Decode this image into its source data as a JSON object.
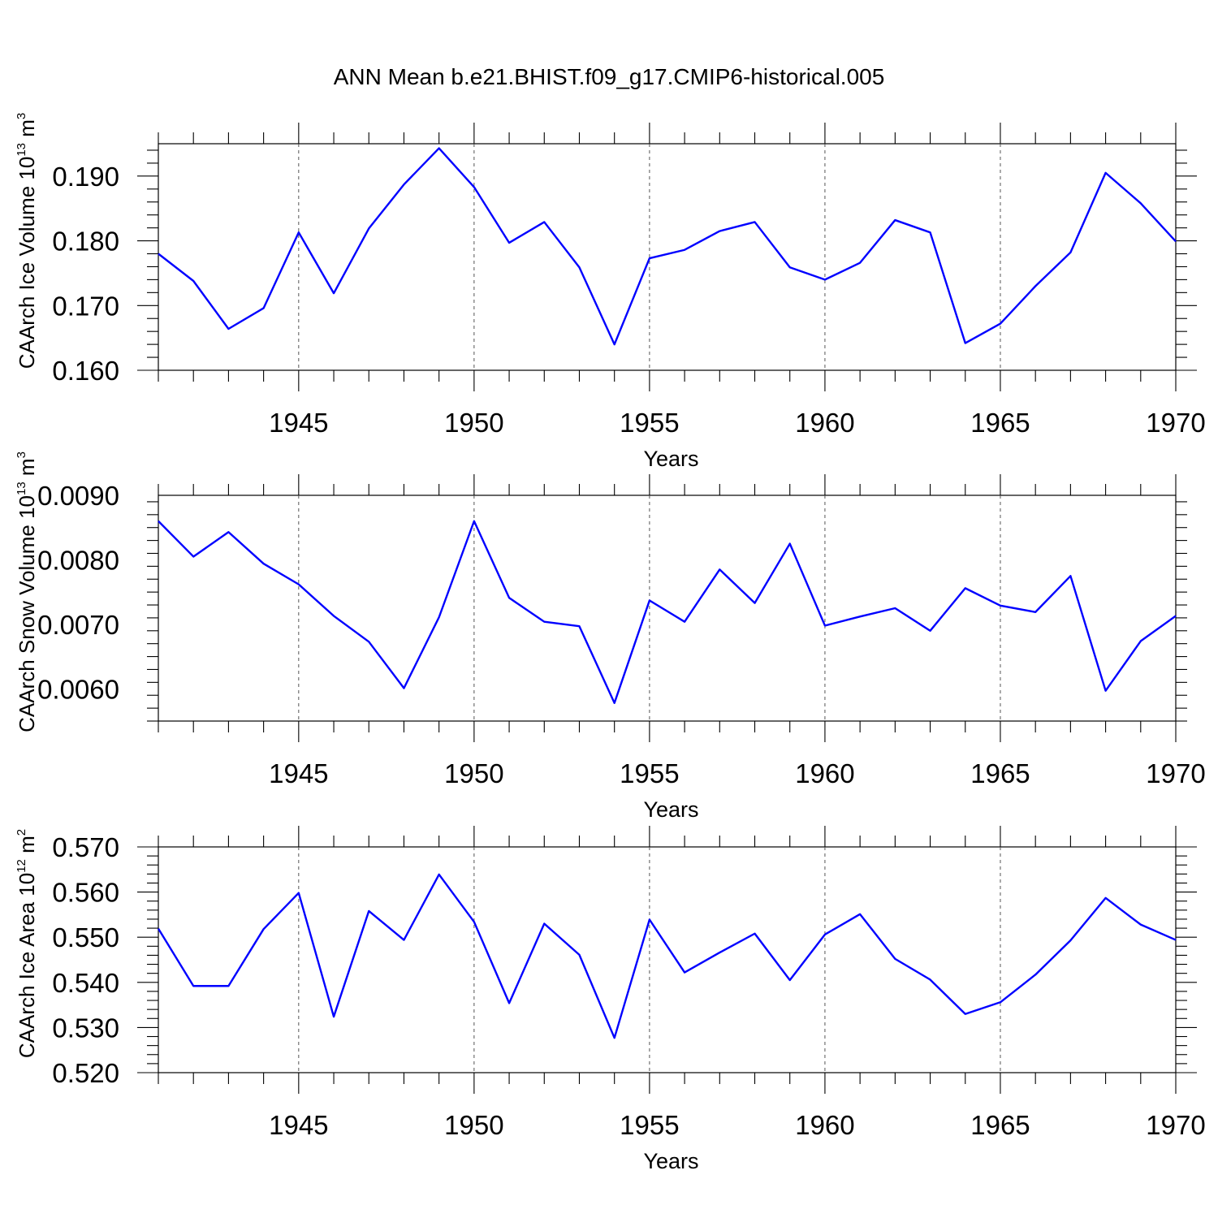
{
  "title": "ANN Mean b.e21.BHIST.f09_g17.CMIP6-historical.005",
  "colors": {
    "line": "#0000ff",
    "axis": "#000000"
  },
  "chart_data": [
    {
      "type": "line",
      "xlabel": "Years",
      "ylabel": {
        "main": "CAArch Ice Volume 10",
        "exp": "13",
        "unit": " m",
        "unit_exp": "3"
      },
      "xlim": [
        1941,
        1970
      ],
      "ylim": [
        0.16,
        0.195
      ],
      "xticks": [
        1945,
        1950,
        1955,
        1960,
        1965,
        1970
      ],
      "xtick_labels": [
        "1945",
        "1950",
        "1955",
        "1960",
        "1965",
        "1970"
      ],
      "yticks": [
        0.16,
        0.17,
        0.18,
        0.19
      ],
      "ytick_labels": [
        "0.160",
        "0.170",
        "0.180",
        "0.190"
      ],
      "x": [
        1941,
        1942,
        1943,
        1944,
        1945,
        1946,
        1947,
        1948,
        1949,
        1950,
        1951,
        1952,
        1953,
        1954,
        1955,
        1956,
        1957,
        1958,
        1959,
        1960,
        1961,
        1962,
        1963,
        1964,
        1965,
        1966,
        1967,
        1968,
        1969,
        1970
      ],
      "series": [
        {
          "name": "CAArch Ice Volume",
          "values": [
            0.178,
            0.1738,
            0.1664,
            0.1696,
            0.1813,
            0.1719,
            0.1819,
            0.1887,
            0.1943,
            0.1883,
            0.1797,
            0.1829,
            0.1759,
            0.164,
            0.1773,
            0.1786,
            0.1815,
            0.1829,
            0.1759,
            0.174,
            0.1766,
            0.1832,
            0.1813,
            0.1642,
            0.1672,
            0.173,
            0.1782,
            0.1905,
            0.1858,
            0.1799
          ]
        }
      ]
    },
    {
      "type": "line",
      "xlabel": "Years",
      "ylabel": {
        "main": "CAArch Snow Volume 10",
        "exp": "13",
        "unit": " m",
        "unit_exp": "3"
      },
      "xlim": [
        1941,
        1970
      ],
      "ylim": [
        0.0055,
        0.009
      ],
      "xticks": [
        1945,
        1950,
        1955,
        1960,
        1965,
        1970
      ],
      "xtick_labels": [
        "1945",
        "1950",
        "1955",
        "1960",
        "1965",
        "1970"
      ],
      "yticks": [
        0.006,
        0.007,
        0.008,
        0.009
      ],
      "ytick_labels": [
        "0.0060",
        "0.0070",
        "0.0080",
        "0.0090"
      ],
      "x": [
        1941,
        1942,
        1943,
        1944,
        1945,
        1946,
        1947,
        1948,
        1949,
        1950,
        1951,
        1952,
        1953,
        1954,
        1955,
        1956,
        1957,
        1958,
        1959,
        1960,
        1961,
        1962,
        1963,
        1964,
        1965,
        1966,
        1967,
        1968,
        1969,
        1970
      ],
      "series": [
        {
          "name": "CAArch Snow Volume",
          "values": [
            0.0086,
            0.00805,
            0.00843,
            0.00794,
            0.00762,
            0.00713,
            0.00673,
            0.00601,
            0.00711,
            0.0086,
            0.00741,
            0.00704,
            0.00697,
            0.00578,
            0.00737,
            0.00704,
            0.00785,
            0.00733,
            0.00825,
            0.00698,
            0.00712,
            0.00725,
            0.0069,
            0.00756,
            0.00729,
            0.00719,
            0.00775,
            0.00597,
            0.00674,
            0.00713
          ]
        }
      ]
    },
    {
      "type": "line",
      "xlabel": "Years",
      "ylabel": {
        "main": "CAArch Ice Area 10",
        "exp": "12",
        "unit": " m",
        "unit_exp": "2"
      },
      "xlim": [
        1941,
        1970
      ],
      "ylim": [
        0.52,
        0.57
      ],
      "xticks": [
        1945,
        1950,
        1955,
        1960,
        1965,
        1970
      ],
      "xtick_labels": [
        "1945",
        "1950",
        "1955",
        "1960",
        "1965",
        "1970"
      ],
      "yticks": [
        0.52,
        0.53,
        0.54,
        0.55,
        0.56,
        0.57
      ],
      "ytick_labels": [
        "0.520",
        "0.530",
        "0.540",
        "0.550",
        "0.560",
        "0.570"
      ],
      "x": [
        1941,
        1942,
        1943,
        1944,
        1945,
        1946,
        1947,
        1948,
        1949,
        1950,
        1951,
        1952,
        1953,
        1954,
        1955,
        1956,
        1957,
        1958,
        1959,
        1960,
        1961,
        1962,
        1963,
        1964,
        1965,
        1966,
        1967,
        1968,
        1969,
        1970
      ],
      "series": [
        {
          "name": "CAArch Ice Area",
          "values": [
            0.5519,
            0.5392,
            0.5392,
            0.5518,
            0.5598,
            0.5324,
            0.5558,
            0.5494,
            0.5639,
            0.5534,
            0.5354,
            0.553,
            0.5461,
            0.5277,
            0.5539,
            0.5422,
            0.5466,
            0.5508,
            0.5405,
            0.5506,
            0.5551,
            0.5452,
            0.5406,
            0.533,
            0.5356,
            0.5417,
            0.5493,
            0.5587,
            0.5528,
            0.5494
          ]
        }
      ]
    }
  ]
}
